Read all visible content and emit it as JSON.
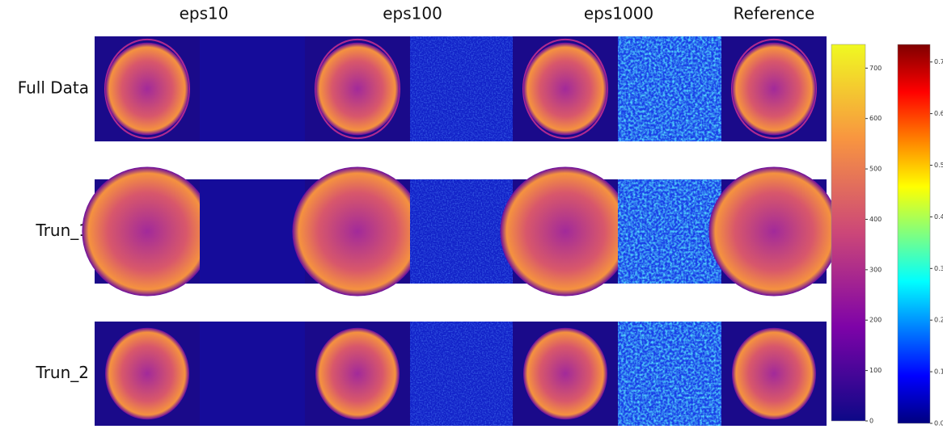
{
  "columns": [
    "eps10",
    "eps100",
    "eps1000",
    "Reference"
  ],
  "rows": [
    "Full Data",
    "Trun_1",
    "Trun_2"
  ],
  "colorbars": [
    {
      "range": [
        0,
        747
      ],
      "ticks": [
        0,
        100,
        200,
        300,
        400,
        500,
        600,
        700
      ]
    },
    {
      "range": [
        0,
        0.734
      ],
      "ticks": [
        {
          "value": 0,
          "label": "0.0"
        },
        {
          "value": 0.1,
          "label": "0.1"
        },
        {
          "value": 0.2,
          "label": "0.2"
        },
        {
          "value": 0.3,
          "label": "0.3"
        },
        {
          "value": 0.4,
          "label": "0.4"
        },
        {
          "value": 0.5,
          "label": "0.5"
        },
        {
          "value": 0.6,
          "label": "0.6"
        },
        {
          "value": 0.7,
          "label": "0.7"
        }
      ]
    }
  ]
}
